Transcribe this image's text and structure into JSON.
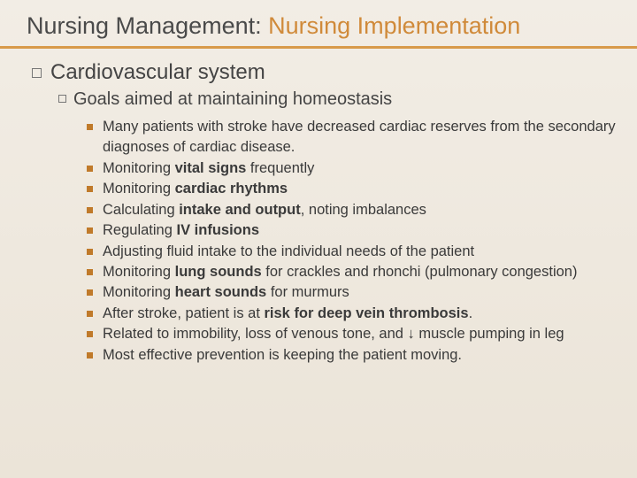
{
  "title_plain": "Nursing Management: ",
  "title_accent": "Nursing Implementation",
  "colors": {
    "background_top": "#f2ede5",
    "background_bottom": "#ebe4d8",
    "accent": "#d08a3a",
    "underline": "#d89a4a",
    "bullet_l3": "#c07a2a",
    "text": "#3a3a3a"
  },
  "typography": {
    "title_fontsize": 27,
    "l1_fontsize": 24,
    "l2_fontsize": 20,
    "l3_fontsize": 16.5,
    "font_family": "Arial"
  },
  "level1": {
    "text": "Cardiovascular system"
  },
  "level2": {
    "text": "Goals aimed at maintaining homeostasis"
  },
  "level3_items": [
    {
      "html": "Many patients with stroke have decreased cardiac reserves from the secondary diagnoses of cardiac disease."
    },
    {
      "html": "Monitoring <b>vital signs</b> frequently"
    },
    {
      "html": "Monitoring <b>cardiac rhythms</b>"
    },
    {
      "html": "Calculating <b>intake and output</b>, noting imbalances"
    },
    {
      "html": "Regulating <b>IV infusions</b>"
    },
    {
      "html": "Adjusting fluid intake to the individual needs of the patient"
    },
    {
      "html": "Monitoring <b>lung sounds</b> for crackles and rhonchi (pulmonary congestion)"
    },
    {
      "html": "Monitoring <b>heart sounds</b> for murmurs"
    },
    {
      "html": "After stroke, patient is at <b>risk for deep vein thrombosis</b>."
    },
    {
      "html": "Related to immobility, loss of venous tone, and ↓ muscle pumping in leg"
    },
    {
      "html": "Most effective prevention is keeping the patient moving."
    }
  ]
}
